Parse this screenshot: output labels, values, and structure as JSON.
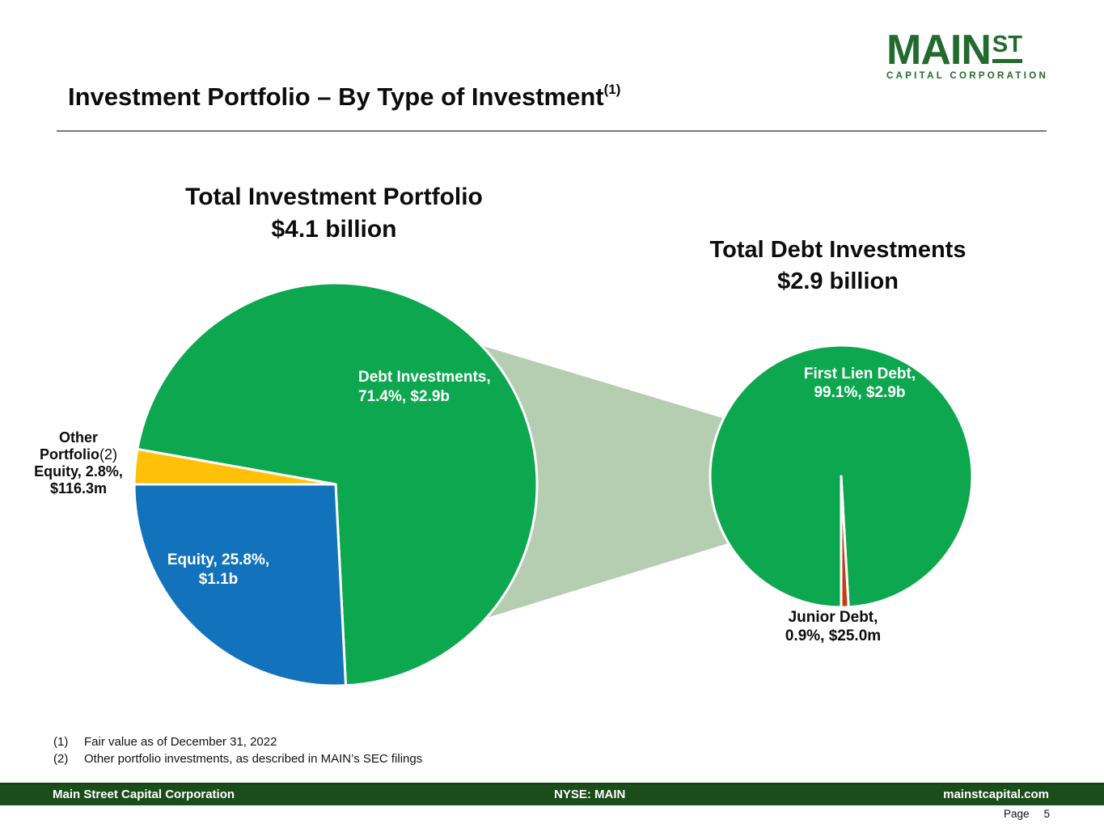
{
  "page": {
    "title": "Investment Portfolio – By Type of Investment",
    "title_superscript": "(1)",
    "page_label": "Page",
    "page_number": "5"
  },
  "logo": {
    "main": "MAIN",
    "st": "ST",
    "tagline": "CAPITAL CORPORATION"
  },
  "chart_data": [
    {
      "type": "pie",
      "title": "Total Investment Portfolio",
      "subtitle": "$4.1 billion",
      "legend": "none, data labels on/next to slices",
      "slices": [
        {
          "label": "Debt Investments",
          "pct": 71.4,
          "value": "$2.9b",
          "color": "#0CA74F",
          "label_lines": [
            "Debt Investments,",
            "71.4%, $2.9b"
          ]
        },
        {
          "label": "Equity",
          "pct": 25.8,
          "value": "$1.1b",
          "color": "#1272BC",
          "label_lines": [
            "Equity, 25.8%,",
            "$1.1b"
          ]
        },
        {
          "label": "Other Portfolio Equity",
          "pct": 2.8,
          "value": "$116.3m",
          "color": "#FFC008",
          "footnote_ref": "(2)",
          "label_lines": [
            "Other",
            "Portfolio",
            "Equity, 2.8%,",
            "$116.3m"
          ]
        }
      ]
    },
    {
      "type": "pie",
      "title": "Total Debt Investments",
      "subtitle": "$2.9 billion",
      "legend": "none, data labels on/next to slices",
      "slices": [
        {
          "label": "First Lien Debt",
          "pct": 99.1,
          "value": "$2.9b",
          "color": "#0CA74F",
          "label_lines": [
            "First Lien Debt,",
            "99.1%, $2.9b"
          ]
        },
        {
          "label": "Junior Debt",
          "pct": 0.9,
          "value": "$25.0m",
          "color": "#C93B16",
          "label_lines": [
            "Junior Debt,",
            "0.9%, $25.0m"
          ]
        }
      ]
    }
  ],
  "colors": {
    "pie_green": "#0CA74F",
    "pie_blue": "#1272BC",
    "pie_yellow": "#FFC008",
    "pie_red": "#C93B16",
    "connector": "#B5CDB0",
    "brand_green": "#226A2D",
    "footer_bg": "#1B4D1B"
  },
  "footnotes": [
    {
      "num": "(1)",
      "text": "Fair value as of December 31, 2022"
    },
    {
      "num": "(2)",
      "text": "Other portfolio investments, as described in MAIN’s SEC filings"
    }
  ],
  "footer": {
    "left": "Main Street Capital Corporation",
    "center": "NYSE: MAIN",
    "right": "mainstcapital.com"
  }
}
